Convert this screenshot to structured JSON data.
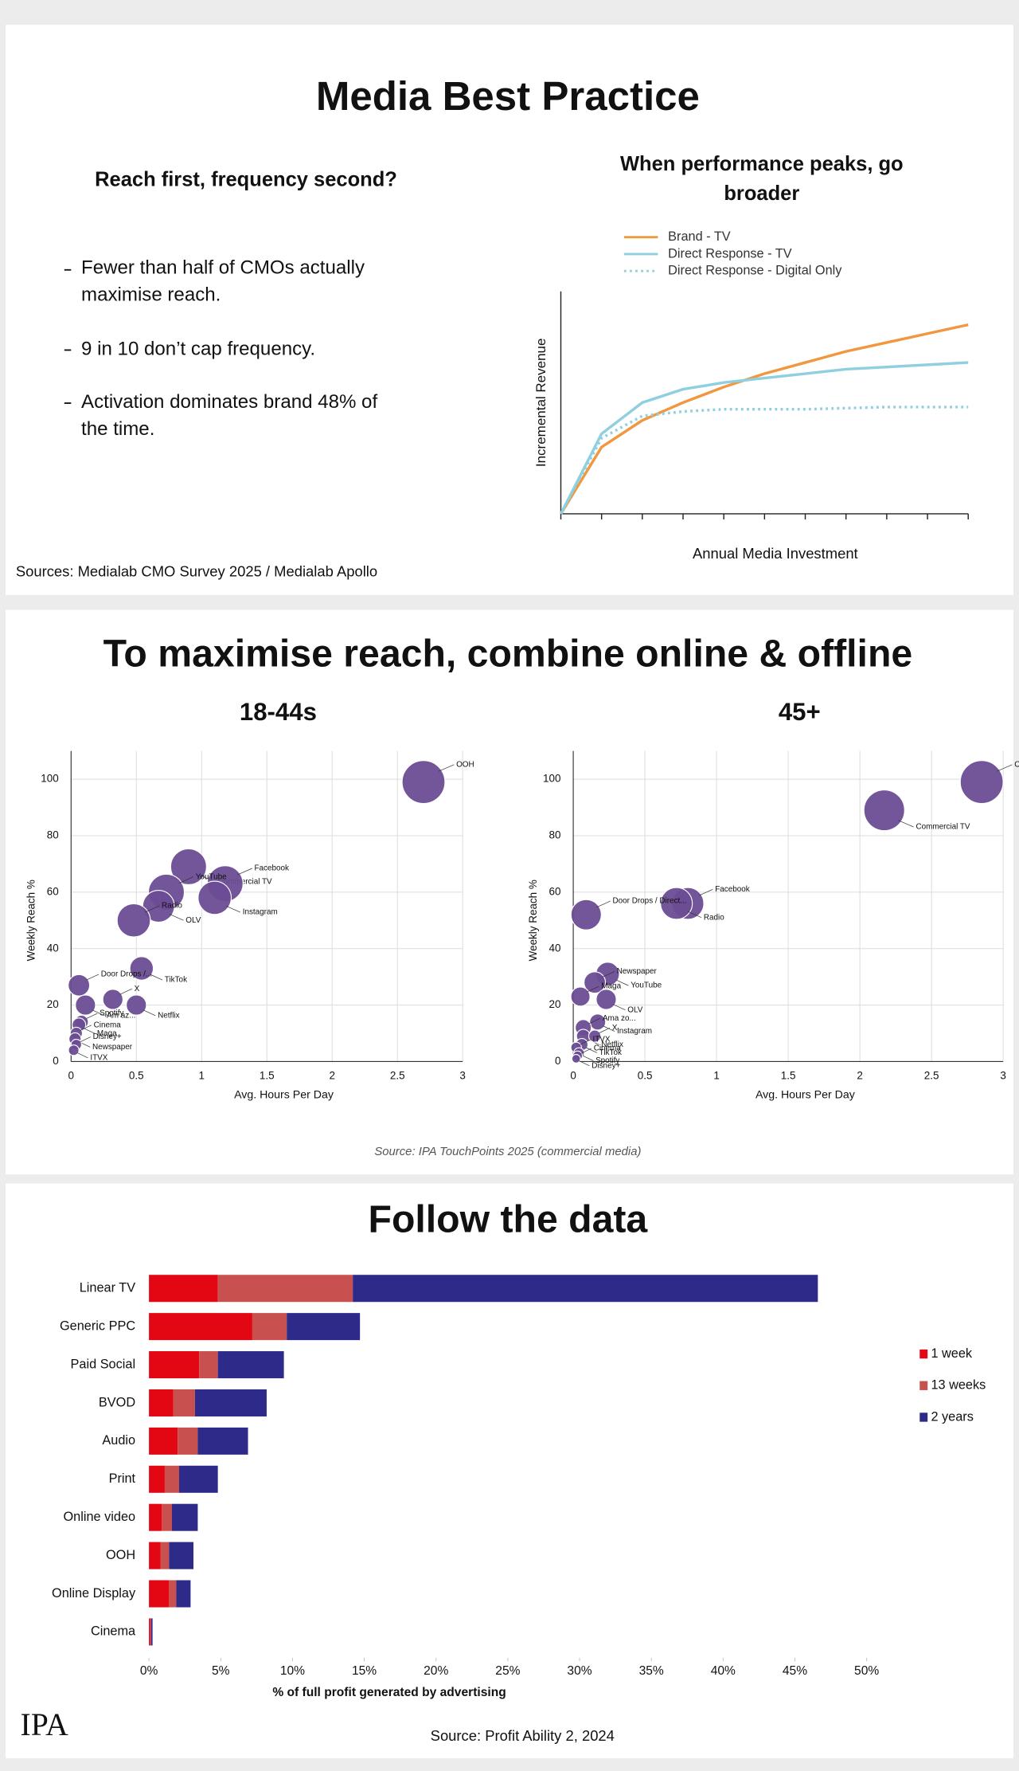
{
  "sections": [
    {
      "title": "Media Best Practice",
      "subtitle": "Reach first, frequency second?",
      "bullets": [
        "Fewer than half of CMOs actually maximise reach.",
        "9 in 10 don’t cap frequency.",
        "Activation dominates brand 48% of the time."
      ],
      "source": "Sources: Medialab CMO Survey 2025 / Medialab Apollo"
    },
    {
      "title": "To maximise reach, combine online & offline",
      "source": "Source: IPA TouchPoints 2025 (commercial media)"
    },
    {
      "title": "Follow the data",
      "source": "Source: Profit Ability 2, 2024",
      "logo": "IPA"
    }
  ],
  "chart_data": [
    {
      "type": "line",
      "title": "When performance peaks, go broader",
      "x_label": "Annual Media Investment",
      "y_label": "Incremental Revenue",
      "x": [
        0,
        1,
        2,
        3,
        4,
        5,
        6,
        7,
        8,
        9,
        10
      ],
      "xlim": [
        0,
        10
      ],
      "ylim": [
        0,
        100
      ],
      "series": [
        {
          "name": "Brand - TV",
          "color": "#f0973f",
          "line_style": "solid",
          "values": [
            0,
            30,
            42,
            50,
            57,
            63,
            68,
            73,
            77,
            81,
            85
          ]
        },
        {
          "name": "Direct Response - TV",
          "color": "#8fcfe0",
          "line_style": "solid",
          "values": [
            0,
            36,
            50,
            56,
            59,
            61,
            63,
            65,
            66,
            67,
            68
          ]
        },
        {
          "name": "Direct Response - Digital Only",
          "color": "#8fcfe0",
          "line_style": "dotted",
          "values": [
            0,
            34,
            44,
            46,
            47,
            47,
            47,
            47.5,
            48,
            48,
            48
          ]
        }
      ]
    },
    {
      "type": "scatter",
      "title": "18-44s",
      "x_label": "Avg. Hours Per Day",
      "y_label": "Weekly Reach %",
      "xlim": [
        0,
        3
      ],
      "ylim": [
        0,
        100
      ],
      "xticks": [
        0,
        0.5,
        1,
        1.5,
        2,
        2.5,
        3
      ],
      "yticks": [
        0,
        20,
        40,
        60,
        80,
        100
      ],
      "grid": true,
      "color": "#6b4c93",
      "points": [
        {
          "label": "OOH",
          "x": 2.7,
          "y": 99,
          "size": 100
        },
        {
          "label": "Commercial TV",
          "x": 0.9,
          "y": 69,
          "size": 70
        },
        {
          "label": "Facebook",
          "x": 1.18,
          "y": 63,
          "size": 70
        },
        {
          "label": "Instagram",
          "x": 1.1,
          "y": 58,
          "size": 60
        },
        {
          "label": "YouTube",
          "x": 0.73,
          "y": 60,
          "size": 70
        },
        {
          "label": "OLV",
          "x": 0.67,
          "y": 55,
          "size": 55
        },
        {
          "label": "Radio",
          "x": 0.48,
          "y": 50,
          "size": 60
        },
        {
          "label": "TikTok",
          "x": 0.54,
          "y": 33,
          "size": 30
        },
        {
          "label": "Door Drops /...",
          "x": 0.06,
          "y": 27,
          "size": 25
        },
        {
          "label": "Am az...",
          "x": 0.11,
          "y": 20,
          "size": 22
        },
        {
          "label": "X",
          "x": 0.32,
          "y": 22,
          "size": 22
        },
        {
          "label": "Netflix",
          "x": 0.5,
          "y": 20,
          "size": 22
        },
        {
          "label": "Spotify",
          "x": 0.08,
          "y": 14,
          "size": 10
        },
        {
          "label": "Maga",
          "x": 0.06,
          "y": 13,
          "size": 10
        },
        {
          "label": "Cinema",
          "x": 0.04,
          "y": 10,
          "size": 8
        },
        {
          "label": "Newspaper",
          "x": 0.03,
          "y": 8,
          "size": 8
        },
        {
          "label": "Disney+",
          "x": 0.04,
          "y": 6,
          "size": 6
        },
        {
          "label": "ITVX",
          "x": 0.02,
          "y": 4,
          "size": 6
        }
      ]
    },
    {
      "type": "scatter",
      "title": "45+",
      "x_label": "Avg. Hours Per Day",
      "y_label": "Weekly Reach %",
      "xlim": [
        0,
        3
      ],
      "ylim": [
        0,
        100
      ],
      "xticks": [
        0,
        0.5,
        1,
        1.5,
        2,
        2.5,
        3
      ],
      "yticks": [
        0,
        20,
        40,
        60,
        80,
        100
      ],
      "grid": true,
      "color": "#6b4c93",
      "points": [
        {
          "label": "OOH",
          "x": 2.85,
          "y": 99,
          "size": 100
        },
        {
          "label": "Commercial TV",
          "x": 2.17,
          "y": 89,
          "size": 90
        },
        {
          "label": "Facebook",
          "x": 0.8,
          "y": 56,
          "size": 55
        },
        {
          "label": "Radio",
          "x": 0.72,
          "y": 56,
          "size": 55
        },
        {
          "label": "Door Drops / Direct...",
          "x": 0.09,
          "y": 52,
          "size": 50
        },
        {
          "label": "YouTube",
          "x": 0.24,
          "y": 31,
          "size": 30
        },
        {
          "label": "Newspaper",
          "x": 0.15,
          "y": 28,
          "size": 25
        },
        {
          "label": "OLV",
          "x": 0.23,
          "y": 22,
          "size": 22
        },
        {
          "label": "Maga",
          "x": 0.05,
          "y": 23,
          "size": 20
        },
        {
          "label": "Instagram",
          "x": 0.17,
          "y": 14,
          "size": 14
        },
        {
          "label": "Ama zo...",
          "x": 0.07,
          "y": 12,
          "size": 14
        },
        {
          "label": "Netflix",
          "x": 0.07,
          "y": 9,
          "size": 10
        },
        {
          "label": "X",
          "x": 0.15,
          "y": 9,
          "size": 8
        },
        {
          "label": "TikTok",
          "x": 0.06,
          "y": 6,
          "size": 8
        },
        {
          "label": "ITVX",
          "x": 0.02,
          "y": 5,
          "size": 6
        },
        {
          "label": "Spotify",
          "x": 0.04,
          "y": 3,
          "size": 6
        },
        {
          "label": "Cinema",
          "x": 0.03,
          "y": 2,
          "size": 5
        },
        {
          "label": "Disney+",
          "x": 0.02,
          "y": 1,
          "size": 4
        }
      ]
    },
    {
      "type": "bar",
      "orientation": "horizontal",
      "stacked": true,
      "legend": "right",
      "x_label": "% of full profit generated by advertising",
      "categories": [
        "Linear TV",
        "Generic PPC",
        "Paid Social",
        "BVOD",
        "Audio",
        "Print",
        "Online video",
        "OOH",
        "Online Display",
        "Cinema"
      ],
      "xlim": [
        0,
        50
      ],
      "xticks": [
        {
          "value": 0,
          "label": "0%"
        },
        {
          "value": 5,
          "label": "5%"
        },
        {
          "value": 10,
          "label": "10%"
        },
        {
          "value": 15,
          "label": "15%"
        },
        {
          "value": 20,
          "label": "20%"
        },
        {
          "value": 25,
          "label": "25%"
        },
        {
          "value": 30,
          "label": "30%"
        },
        {
          "value": 35,
          "label": "35%"
        },
        {
          "value": 40,
          "label": "40%"
        },
        {
          "value": 45,
          "label": "45%"
        },
        {
          "value": 50,
          "label": "50%"
        }
      ],
      "series": [
        {
          "name": "1 week",
          "color": "#e30613",
          "values": [
            4.8,
            7.2,
            3.5,
            1.7,
            2.0,
            1.1,
            0.9,
            0.8,
            1.4,
            0.1
          ]
        },
        {
          "name": "13 weeks",
          "color": "#c8504e",
          "values": [
            9.4,
            2.4,
            1.3,
            1.5,
            1.4,
            1.0,
            0.7,
            0.6,
            0.5,
            0.05
          ]
        },
        {
          "name": "2 years",
          "color": "#2e2a8a",
          "values": [
            32.4,
            5.1,
            4.6,
            5.0,
            3.5,
            2.7,
            1.8,
            1.7,
            1.0,
            0.1
          ]
        }
      ]
    }
  ]
}
